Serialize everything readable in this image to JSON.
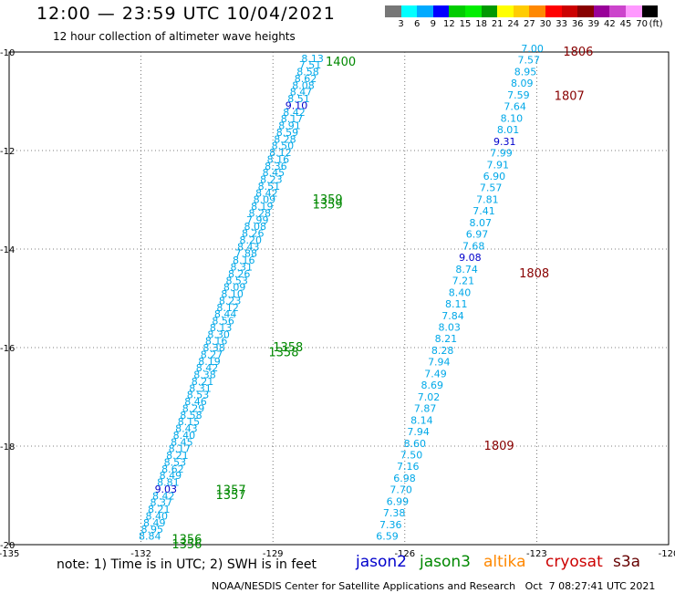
{
  "header": {
    "title": "12:00 — 23:59 UTC 10/04/2021",
    "subtitle": "12 hour collection of altimeter wave heights"
  },
  "colorbar": {
    "colors": [
      "#777777",
      "#00ffff",
      "#00aaff",
      "#0000ff",
      "#00cc00",
      "#00ee00",
      "#009900",
      "#ffff00",
      "#ffcc00",
      "#ff8800",
      "#ff0000",
      "#cc0000",
      "#880000",
      "#990099",
      "#cc44cc",
      "#ff99ff",
      "#000000"
    ],
    "labels": [
      "3",
      "6",
      "9",
      "12",
      "15",
      "18",
      "21",
      "24",
      "27",
      "30",
      "33",
      "36",
      "39",
      "42",
      "45",
      "70",
      "(ft)"
    ]
  },
  "footer": {
    "note": "note: 1) Time is in UTC; 2) SWH is in feet",
    "satellites": [
      {
        "name": "jason2",
        "color": "#0000cc"
      },
      {
        "name": "jason3",
        "color": "#008800"
      },
      {
        "name": "altika",
        "color": "#ff8800"
      },
      {
        "name": "cryosat",
        "color": "#cc0000"
      },
      {
        "name": "s3a",
        "color": "#660000"
      }
    ],
    "credit": "NOAA/NESDIS Center for Satellite Applications and Research   Oct  7 08:27:41 UTC 2021"
  },
  "chart_data": {
    "type": "scatter",
    "xlim": [
      -135,
      -120
    ],
    "ylim": [
      -20,
      -10
    ],
    "x_ticks": [
      -135,
      -132,
      -129,
      -126,
      -123,
      -120
    ],
    "y_ticks": [
      -10,
      -12,
      -14,
      -16,
      -18,
      -20
    ],
    "grid": true,
    "tracks": [
      {
        "satellite": "jason3",
        "start": [
          -128.1,
          -10.2
        ],
        "end": [
          -131.8,
          -19.9
        ],
        "values": [
          8.13,
          7.51,
          8.58,
          8.62,
          8.08,
          8.47,
          8.51,
          9.1,
          8.42,
          8.17,
          8.91,
          8.59,
          8.28,
          8.5,
          8.12,
          8.16,
          8.36,
          8.45,
          8.23,
          8.51,
          8.42,
          8.09,
          8.19,
          8.28,
          7.99,
          8.08,
          8.26,
          8.2,
          8.43,
          7.88,
          8.16,
          8.31,
          8.26,
          8.53,
          8.09,
          8.1,
          8.23,
          8.12,
          8.44,
          8.56,
          8.13,
          8.3,
          8.16,
          8.38,
          8.27,
          8.19,
          8.42,
          8.38,
          8.21,
          8.31,
          8.53,
          8.46,
          8.29,
          8.58,
          8.15,
          8.43,
          8.4,
          8.45,
          8.17,
          8.21,
          8.53,
          8.62,
          8.49,
          8.81,
          9.03,
          8.42,
          8.37,
          8.21,
          8.4,
          8.49,
          8.95,
          8.84
        ]
      },
      {
        "satellite": "cryosat",
        "start": [
          -123.1,
          -10.0
        ],
        "end": [
          -126.4,
          -19.9
        ],
        "values": [
          7.0,
          7.57,
          8.95,
          8.09,
          7.59,
          7.64,
          8.1,
          8.01,
          9.31,
          7.99,
          7.91,
          6.9,
          7.57,
          7.81,
          7.41,
          8.07,
          6.97,
          7.68,
          9.08,
          8.74,
          7.21,
          8.4,
          8.11,
          7.84,
          8.03,
          8.21,
          8.28,
          7.94,
          7.49,
          8.69,
          7.02,
          7.87,
          8.14,
          7.94,
          8.6,
          7.5,
          7.16,
          6.98,
          7.7,
          6.99,
          7.38,
          7.36,
          6.59
        ]
      }
    ],
    "time_labels": [
      {
        "text": "1400",
        "lon": -127.8,
        "lat": -10.2,
        "color": "#008800"
      },
      {
        "text": "1359",
        "lon": -128.1,
        "lat": -13.0,
        "color": "#008800"
      },
      {
        "text": "1359",
        "lon": -128.1,
        "lat": -13.1,
        "color": "#008800"
      },
      {
        "text": "1358",
        "lon": -129.0,
        "lat": -16.0,
        "color": "#008800"
      },
      {
        "text": "1358",
        "lon": -129.1,
        "lat": -16.1,
        "color": "#008800"
      },
      {
        "text": "1357",
        "lon": -130.3,
        "lat": -18.9,
        "color": "#008800"
      },
      {
        "text": "1357",
        "lon": -130.3,
        "lat": -19.0,
        "color": "#008800"
      },
      {
        "text": "1356",
        "lon": -131.3,
        "lat": -19.9,
        "color": "#008800"
      },
      {
        "text": "1356",
        "lon": -131.3,
        "lat": -20.0,
        "color": "#008800"
      },
      {
        "text": "1806",
        "lon": -122.4,
        "lat": -10.0,
        "color": "#880000"
      },
      {
        "text": "1807",
        "lon": -122.6,
        "lat": -10.9,
        "color": "#880000"
      },
      {
        "text": "1808",
        "lon": -123.4,
        "lat": -14.5,
        "color": "#880000"
      },
      {
        "text": "1809",
        "lon": -124.2,
        "lat": -18.0,
        "color": "#880000"
      }
    ]
  }
}
